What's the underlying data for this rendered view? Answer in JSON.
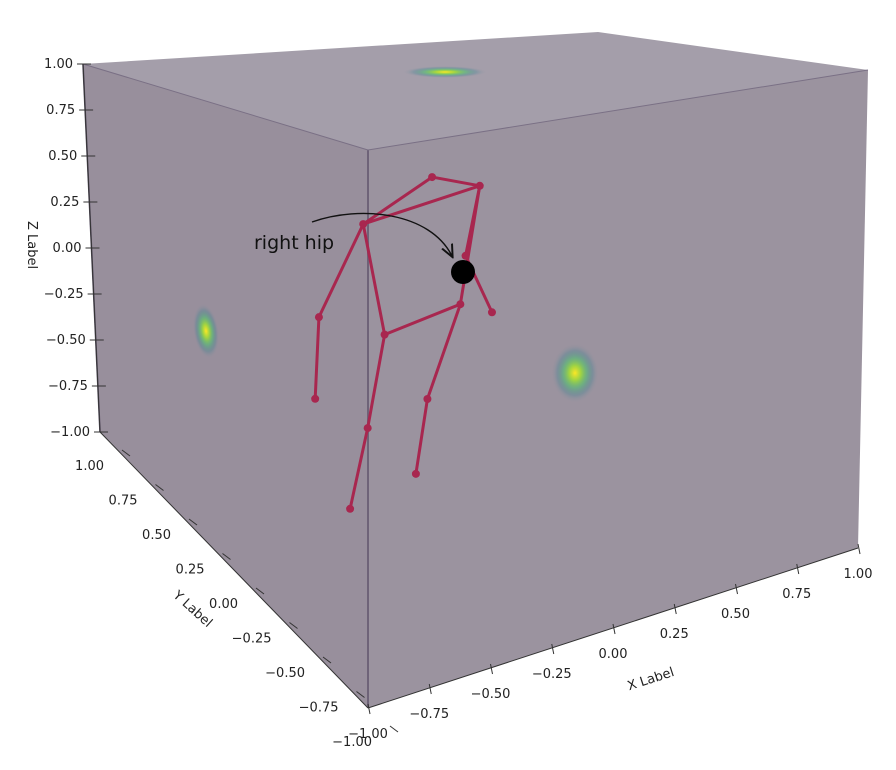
{
  "chart_data": {
    "type": "3d-scatter",
    "title": "",
    "xlabel": "X Label",
    "ylabel": "Y Label",
    "zlabel": "Z Label",
    "xlim": [
      -1,
      1
    ],
    "ylim": [
      -1,
      1
    ],
    "zlim": [
      -1,
      1
    ],
    "x_ticks": [
      "−1.00",
      "−0.75",
      "−0.50",
      "−0.25",
      "0.00",
      "0.25",
      "0.50",
      "0.75",
      "1.00"
    ],
    "y_ticks": [
      "−1.00",
      "−0.75",
      "−0.50",
      "−0.25",
      "0.00",
      "0.25",
      "0.50",
      "0.75",
      "1.00"
    ],
    "z_ticks": [
      "−1.00",
      "−0.75",
      "−0.50",
      "−0.25",
      "0.00",
      "0.25",
      "0.50",
      "0.75",
      "1.00"
    ],
    "skeleton": {
      "color": "#a8274f",
      "joints": [
        {
          "name": "head",
          "x": -0.24,
          "y": 0.1,
          "z": 0.73
        },
        {
          "name": "neck-left",
          "x": -0.5,
          "y": 0.15,
          "z": 0.55
        },
        {
          "name": "neck-right",
          "x": -0.05,
          "y": 0.1,
          "z": 0.6
        },
        {
          "name": "left-elbow",
          "x": -0.68,
          "y": 0.18,
          "z": 0.1
        },
        {
          "name": "left-wrist",
          "x": -0.7,
          "y": 0.2,
          "z": -0.35
        },
        {
          "name": "right-elbow",
          "x": -0.12,
          "y": 0.1,
          "z": 0.25
        },
        {
          "name": "right-wrist",
          "x": -0.05,
          "y": 0.05,
          "z": -0.05
        },
        {
          "name": "right-hip",
          "x": -0.45,
          "y": 0.12,
          "z": -0.05
        },
        {
          "name": "left-hip",
          "x": -0.15,
          "y": 0.1,
          "z": 0.0
        },
        {
          "name": "right-knee",
          "x": -0.52,
          "y": 0.15,
          "z": -0.55
        },
        {
          "name": "right-ankle",
          "x": -0.58,
          "y": 0.2,
          "z": -1.0
        },
        {
          "name": "left-knee",
          "x": -0.3,
          "y": 0.1,
          "z": -0.45
        },
        {
          "name": "left-ankle",
          "x": -0.35,
          "y": 0.12,
          "z": -0.85
        }
      ],
      "bones": [
        [
          "head",
          "neck-left"
        ],
        [
          "head",
          "neck-right"
        ],
        [
          "neck-left",
          "neck-right"
        ],
        [
          "neck-left",
          "left-elbow"
        ],
        [
          "left-elbow",
          "left-wrist"
        ],
        [
          "neck-right",
          "right-elbow"
        ],
        [
          "right-elbow",
          "right-wrist"
        ],
        [
          "neck-left",
          "right-hip"
        ],
        [
          "right-hip",
          "left-hip"
        ],
        [
          "neck-right",
          "left-hip"
        ],
        [
          "right-hip",
          "right-knee"
        ],
        [
          "right-knee",
          "right-ankle"
        ],
        [
          "left-hip",
          "left-knee"
        ],
        [
          "left-knee",
          "left-ankle"
        ]
      ]
    },
    "projections": [
      {
        "plane": "top",
        "label": "xy-density"
      },
      {
        "plane": "left-wall",
        "label": "yz-density"
      },
      {
        "plane": "front-wall",
        "label": "xz-density"
      }
    ],
    "annotation": {
      "text": "right hip",
      "target": "right-hip"
    }
  }
}
